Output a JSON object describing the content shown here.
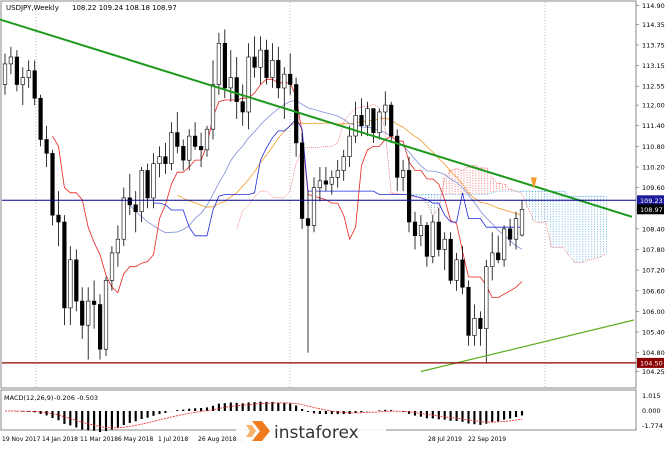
{
  "window": {
    "header_symbol": "USDJPY,Weekly",
    "header_values": "108.22 109.24 108.18 108.97"
  },
  "indicator": {
    "label": "MACD(12,26,9)",
    "values": "-0.206 -0.503"
  },
  "watermark": {
    "brand": "instaforex"
  },
  "colors": {
    "background": "#ffffff",
    "bull_candle": "#ffffff",
    "bear_candle": "#000000",
    "tenkan": "#e8221f",
    "kijun": "#1f2bd6",
    "senkou_a": "#e8221f",
    "senkou_b": "#1f8fd6",
    "ma_orange": "#f39a2a",
    "ma_blue": "#7f8fd6",
    "trend_upper": "#1d9a1d",
    "trend_lower": "#5fae1f",
    "support_line": "#8b0000",
    "horizontal_line": "#00008b",
    "price_tag_blue": "#1a1a9a",
    "price_tag_black": "#000000",
    "price_tag_red": "#8b0000",
    "macd_line": "#e8221f",
    "macd_hist": "#000000",
    "watermark_orange": "#f07a1e"
  },
  "chart_data": {
    "type": "candlestick",
    "symbol": "USDJPY",
    "timeframe": "Weekly",
    "ylim": [
      103.8,
      115.0
    ],
    "y_ticks": [
      "114.90",
      "114.35",
      "113.75",
      "113.15",
      "112.55",
      "112.00",
      "111.40",
      "110.80",
      "110.20",
      "109.60",
      "108.97",
      "108.40",
      "107.80",
      "107.20",
      "106.60",
      "106.00",
      "105.40",
      "104.80",
      "104.25"
    ],
    "x_labels": [
      "19 Nov 2017",
      "14 Jan 2018",
      "11 Mar 2018",
      "6 May 2018",
      "1 Jul 2018",
      "26 Aug 2018",
      "21",
      "28 Jul 2019",
      "22 Sep 2019"
    ],
    "price_levels": {
      "horizontal": "109.23",
      "current": "108.97",
      "support": "104.50"
    },
    "candles": [
      [
        112.6,
        113.5,
        112.3,
        113.2
      ],
      [
        113.2,
        113.7,
        112.9,
        113.4
      ],
      [
        113.4,
        113.6,
        112.4,
        112.6
      ],
      [
        112.6,
        113.1,
        112.0,
        112.8
      ],
      [
        112.8,
        113.3,
        112.5,
        113.0
      ],
      [
        113.0,
        113.3,
        112.0,
        112.2
      ],
      [
        112.2,
        112.3,
        110.8,
        111.0
      ],
      [
        111.0,
        111.4,
        110.2,
        110.6
      ],
      [
        110.6,
        110.7,
        108.5,
        108.8
      ],
      [
        108.8,
        109.5,
        107.9,
        108.6
      ],
      [
        108.6,
        108.8,
        105.6,
        106.1
      ],
      [
        106.1,
        107.9,
        105.6,
        107.5
      ],
      [
        107.5,
        107.8,
        106.0,
        106.3
      ],
      [
        106.3,
        106.7,
        105.2,
        105.6
      ],
      [
        105.6,
        106.7,
        104.6,
        106.3
      ],
      [
        106.3,
        106.9,
        105.5,
        106.2
      ],
      [
        106.2,
        106.5,
        104.6,
        104.9
      ],
      [
        104.9,
        107.0,
        104.7,
        106.9
      ],
      [
        106.9,
        107.9,
        106.6,
        107.7
      ],
      [
        107.7,
        108.5,
        107.3,
        108.1
      ],
      [
        108.1,
        109.6,
        107.9,
        109.3
      ],
      [
        109.3,
        110.0,
        108.8,
        109.1
      ],
      [
        109.1,
        109.5,
        108.3,
        108.9
      ],
      [
        108.9,
        110.2,
        108.6,
        110.1
      ],
      [
        110.1,
        110.3,
        109.0,
        109.3
      ],
      [
        109.3,
        110.6,
        109.0,
        110.3
      ],
      [
        110.3,
        110.8,
        109.9,
        110.5
      ],
      [
        110.5,
        110.9,
        110.0,
        110.3
      ],
      [
        110.3,
        111.5,
        110.1,
        111.2
      ],
      [
        111.2,
        111.8,
        110.6,
        110.8
      ],
      [
        110.8,
        111.0,
        110.1,
        110.4
      ],
      [
        110.4,
        111.3,
        110.1,
        111.1
      ],
      [
        111.1,
        111.5,
        110.7,
        110.8
      ],
      [
        110.8,
        111.2,
        110.2,
        110.7
      ],
      [
        110.7,
        111.4,
        110.5,
        111.3
      ],
      [
        111.3,
        113.3,
        111.0,
        112.6
      ],
      [
        112.6,
        114.1,
        112.3,
        113.8
      ],
      [
        113.8,
        114.2,
        112.2,
        112.5
      ],
      [
        112.5,
        113.6,
        112.1,
        112.8
      ],
      [
        112.8,
        113.4,
        111.6,
        112.1
      ],
      [
        112.1,
        112.6,
        111.4,
        111.8
      ],
      [
        111.8,
        113.8,
        111.3,
        113.4
      ],
      [
        113.4,
        114.0,
        112.8,
        113.1
      ],
      [
        113.1,
        114.0,
        112.6,
        113.6
      ],
      [
        113.6,
        113.9,
        112.6,
        112.8
      ],
      [
        112.8,
        113.8,
        112.5,
        113.3
      ],
      [
        113.3,
        113.7,
        112.2,
        112.5
      ],
      [
        112.5,
        113.1,
        111.6,
        112.9
      ],
      [
        112.9,
        113.5,
        112.3,
        112.6
      ],
      [
        112.6,
        112.8,
        110.5,
        110.9
      ],
      [
        110.9,
        111.2,
        108.4,
        108.7
      ],
      [
        108.7,
        109.5,
        104.8,
        108.5
      ],
      [
        108.5,
        109.9,
        108.3,
        109.6
      ],
      [
        109.6,
        110.2,
        109.2,
        109.8
      ],
      [
        109.8,
        110.2,
        109.5,
        109.7
      ],
      [
        109.7,
        110.1,
        109.4,
        109.9
      ],
      [
        109.9,
        110.4,
        109.6,
        110.1
      ],
      [
        110.1,
        110.7,
        109.8,
        110.5
      ],
      [
        110.5,
        111.4,
        110.2,
        111.1
      ],
      [
        111.1,
        112.1,
        110.9,
        111.7
      ],
      [
        111.7,
        112.2,
        111.1,
        111.4
      ],
      [
        111.4,
        112.1,
        111.1,
        111.9
      ],
      [
        111.9,
        111.9,
        110.9,
        111.2
      ],
      [
        111.2,
        111.9,
        111.0,
        111.8
      ],
      [
        111.8,
        112.4,
        111.4,
        112.0
      ],
      [
        112.0,
        112.1,
        110.9,
        111.1
      ],
      [
        111.1,
        111.3,
        109.5,
        109.9
      ],
      [
        109.9,
        110.4,
        109.5,
        110.1
      ],
      [
        110.1,
        110.5,
        108.3,
        108.6
      ],
      [
        108.6,
        108.9,
        107.8,
        108.2
      ],
      [
        108.2,
        108.8,
        107.9,
        108.5
      ],
      [
        108.5,
        108.6,
        107.3,
        107.6
      ],
      [
        107.6,
        108.8,
        107.4,
        108.6
      ],
      [
        108.6,
        109.0,
        107.6,
        107.8
      ],
      [
        107.8,
        108.3,
        107.2,
        108.1
      ],
      [
        108.1,
        108.3,
        106.8,
        106.9
      ],
      [
        106.9,
        107.7,
        106.6,
        107.5
      ],
      [
        107.5,
        107.9,
        106.5,
        106.7
      ],
      [
        106.7,
        106.9,
        105.0,
        105.3
      ],
      [
        105.3,
        106.2,
        105.0,
        105.8
      ],
      [
        105.8,
        106.0,
        105.0,
        105.5
      ],
      [
        105.5,
        107.5,
        104.5,
        107.3
      ],
      [
        107.3,
        108.3,
        106.9,
        107.7
      ],
      [
        107.7,
        108.2,
        107.4,
        107.5
      ],
      [
        107.5,
        108.5,
        107.3,
        108.4
      ],
      [
        108.4,
        108.7,
        107.9,
        108.1
      ],
      [
        108.1,
        108.9,
        107.8,
        108.7
      ],
      [
        108.22,
        109.24,
        108.18,
        108.97
      ]
    ],
    "upper_trendline": {
      "from": [
        0,
        115.2
      ],
      "to": [
        105,
        108.9
      ]
    },
    "lower_trendline": {
      "from": [
        70,
        104.25
      ],
      "to": [
        105,
        105.75
      ]
    }
  }
}
